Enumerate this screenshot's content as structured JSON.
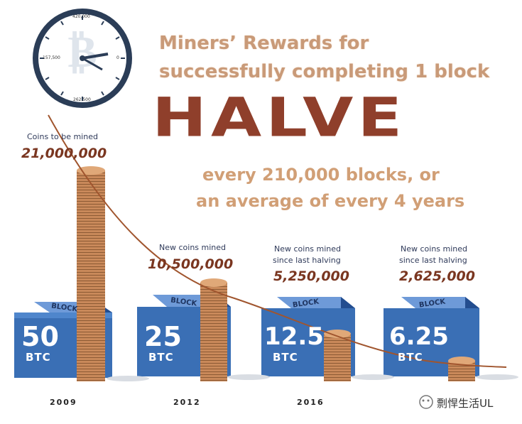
{
  "headline": {
    "line1": "Miners’ Rewards for",
    "line2": "successfully completing 1 block",
    "big": "HALVE",
    "sub1": "every 210,000 blocks, or",
    "sub2": "an average of every 4 years"
  },
  "clock": {
    "labels": [
      "420,000",
      "157,500",
      "0",
      "262,500"
    ]
  },
  "columns": [
    {
      "caption1": "Coins to be mined",
      "caption2": "",
      "amount": "21,000,000",
      "reward_value": "50",
      "reward_unit": "BTC",
      "block_label": "BLOCK",
      "year": "2009"
    },
    {
      "caption1": "New coins mined",
      "caption2": "",
      "amount": "10,500,000",
      "reward_value": "25",
      "reward_unit": "BTC",
      "block_label": "BLOCK",
      "year": "2012"
    },
    {
      "caption1": "New coins mined",
      "caption2": "since last halving",
      "amount": "5,250,000",
      "reward_value": "12.5",
      "reward_unit": "BTC",
      "block_label": "BLOCK",
      "year": "2016"
    },
    {
      "caption1": "New coins mined",
      "caption2": "since last halving",
      "amount": "2,625,000",
      "reward_value": "6.25",
      "reward_unit": "BTC",
      "block_label": "BLOCK",
      "year": ""
    }
  ],
  "watermark": {
    "text": "剽悍生活UL"
  },
  "colors": {
    "halve": "#8f3f2b",
    "headline": "#c99a78",
    "cube_front": "#3a6fb5",
    "coin": "#c9895a"
  }
}
